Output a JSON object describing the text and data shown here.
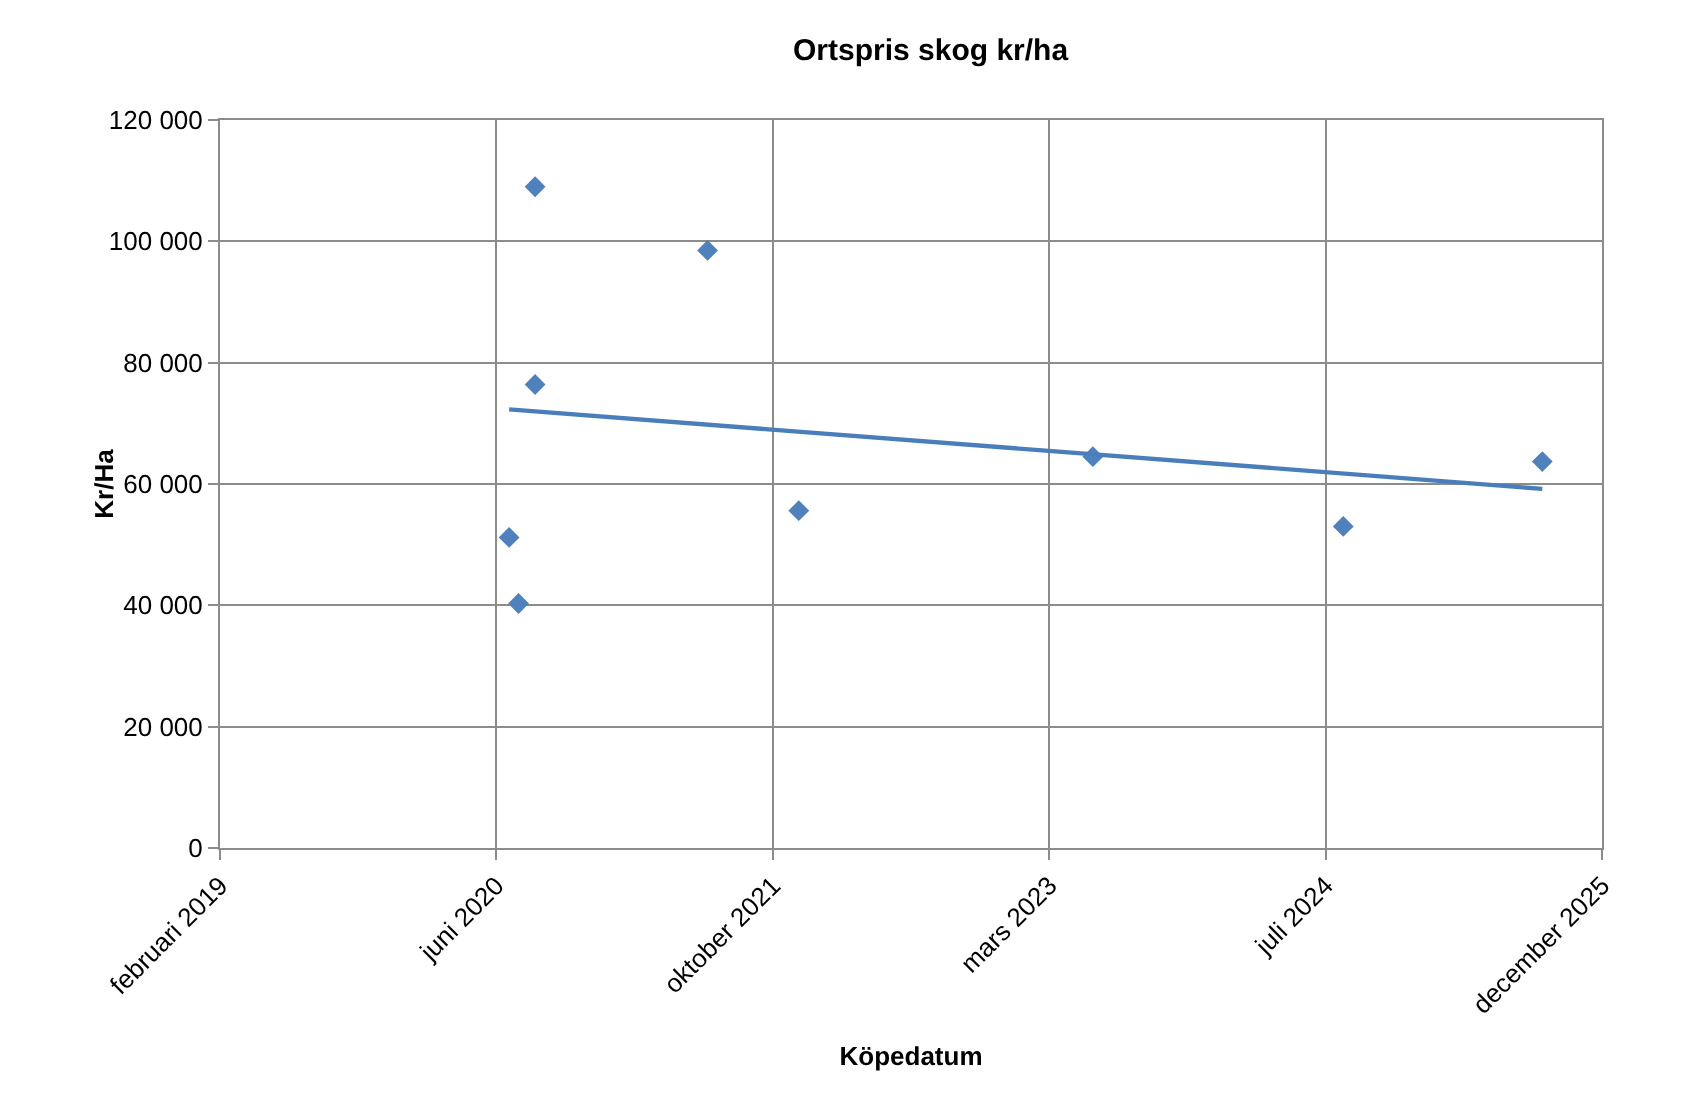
{
  "chart_data": {
    "type": "scatter",
    "title": "Ortspris skog kr/ha",
    "xlabel": "Köpedatum",
    "ylabel": "Kr/Ha",
    "marker": "diamond",
    "grid": true,
    "xlim": [
      "2019-02-01",
      "2025-12-06"
    ],
    "xticks": [
      {
        "value": "2019-02-01",
        "label": "februari 2019"
      },
      {
        "value": "2020-06-15",
        "label": "juni 2020"
      },
      {
        "value": "2021-10-28",
        "label": "oktober 2021"
      },
      {
        "value": "2023-03-12",
        "label": "mars 2023"
      },
      {
        "value": "2024-07-24",
        "label": "juli 2024"
      },
      {
        "value": "2025-12-06",
        "label": "december 2025"
      }
    ],
    "ylim": [
      0,
      120000
    ],
    "yticks": [
      {
        "value": 0,
        "label": "0"
      },
      {
        "value": 20000,
        "label": "20 000"
      },
      {
        "value": 40000,
        "label": "40 000"
      },
      {
        "value": 60000,
        "label": "60 000"
      },
      {
        "value": 80000,
        "label": "80 000"
      },
      {
        "value": 100000,
        "label": "100 000"
      },
      {
        "value": 120000,
        "label": "120 000"
      }
    ],
    "series": [
      {
        "color": "#4f81bd",
        "x": [
          "2020-08-24",
          "2021-07-02",
          "2020-08-24",
          "2023-05-30",
          "2025-08-20",
          "2021-12-14",
          "2024-08-25",
          "2020-07-08",
          "2020-07-25"
        ],
        "values": [
          109000,
          98500,
          76400,
          64500,
          63700,
          55600,
          53000,
          51200,
          40300
        ]
      },
      {
        "type": "line",
        "color": "#4a7ebb",
        "marker": "none",
        "x": [
          "2020-07-08",
          "2025-08-20"
        ],
        "values": [
          72300,
          59200
        ]
      }
    ]
  }
}
